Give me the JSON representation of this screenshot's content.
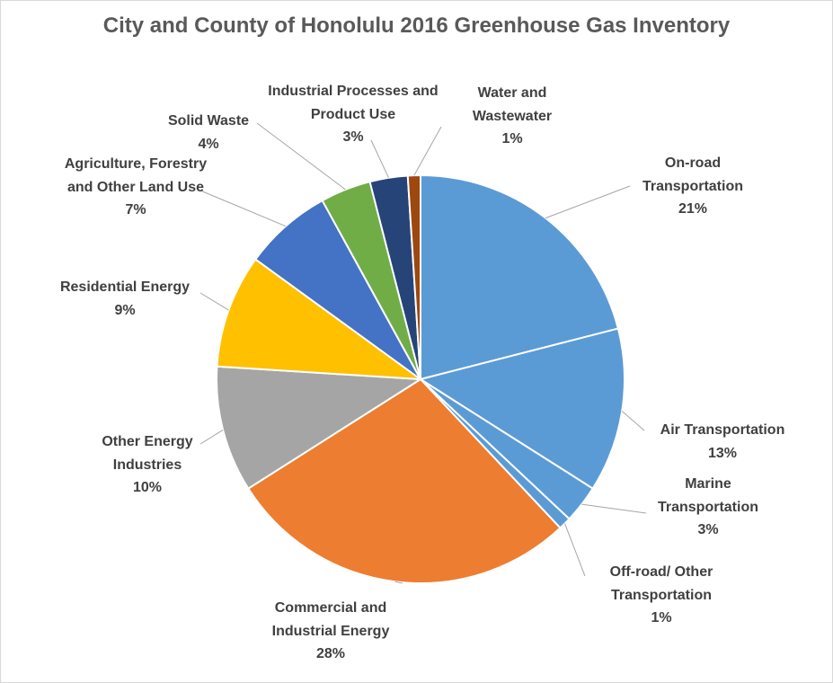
{
  "chart_data": {
    "type": "pie",
    "title": "City and County of Honolulu 2016 Greenhouse Gas Inventory",
    "categories": [
      "On-road Transportation",
      "Air Transportation",
      "Marine Transportation",
      "Off-road/ Other Transportation",
      "Commercial and Industrial Energy",
      "Other Energy Industries",
      "Residential Energy",
      "Agriculture, Forestry and Other Land Use",
      "Solid Waste",
      "Industrial Processes and Product Use",
      "Water and Wastewater"
    ],
    "values": [
      21,
      13,
      3,
      1,
      28,
      10,
      9,
      7,
      4,
      3,
      1
    ],
    "value_labels": [
      "21%",
      "13%",
      "3%",
      "1%",
      "28%",
      "10%",
      "9%",
      "7%",
      "4%",
      "3%",
      "1%"
    ],
    "colors": [
      "#5b9bd5",
      "#5b9bd5",
      "#5b9bd5",
      "#5b9bd5",
      "#ed7d31",
      "#a5a5a5",
      "#ffc000",
      "#4472c4",
      "#70ad47",
      "#264478",
      "#9e480e"
    ]
  }
}
